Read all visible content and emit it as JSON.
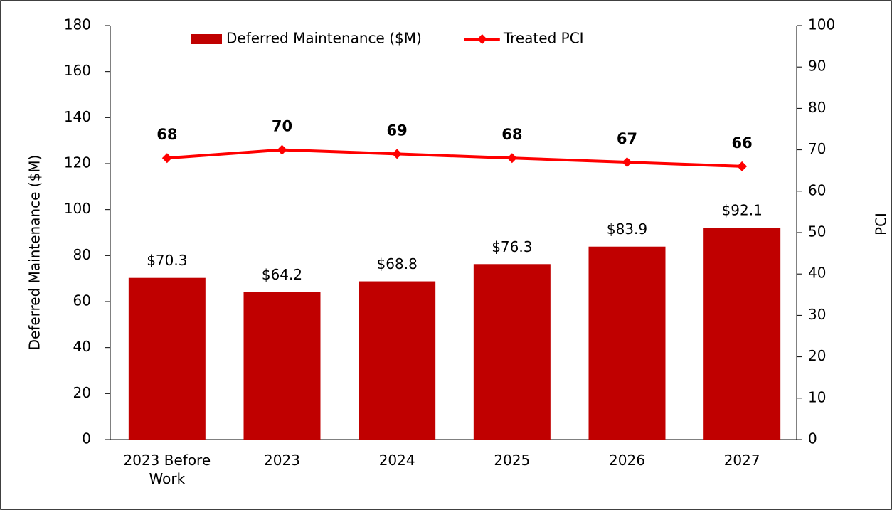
{
  "chart_data": {
    "type": "bar_line",
    "categories": [
      "2023 Before Work",
      "2023",
      "2024",
      "2025",
      "2026",
      "2027"
    ],
    "series": [
      {
        "name": "Deferred Maintenance ($M)",
        "type": "bar",
        "color": "#c00000",
        "axis": "y",
        "values": [
          70.3,
          64.2,
          68.8,
          76.3,
          83.9,
          92.1
        ],
        "value_labels": [
          "$70.3",
          "$64.2",
          "$68.8",
          "$76.3",
          "$83.9",
          "$92.1"
        ]
      },
      {
        "name": "Treated PCI",
        "type": "line",
        "color": "#ff0000",
        "axis": "y2",
        "values": [
          68,
          70,
          69,
          68,
          67,
          66
        ]
      }
    ],
    "ylabel": "Deferred Maintenance ($M)",
    "y2label": "PCI",
    "ylim": [
      0,
      180
    ],
    "yticks": [
      0,
      20,
      40,
      60,
      80,
      100,
      120,
      140,
      160,
      180
    ],
    "y2lim": [
      0,
      100
    ],
    "y2ticks": [
      0,
      10,
      20,
      30,
      40,
      50,
      60,
      70,
      80,
      90,
      100
    ],
    "legend": "top",
    "grid": false
  }
}
